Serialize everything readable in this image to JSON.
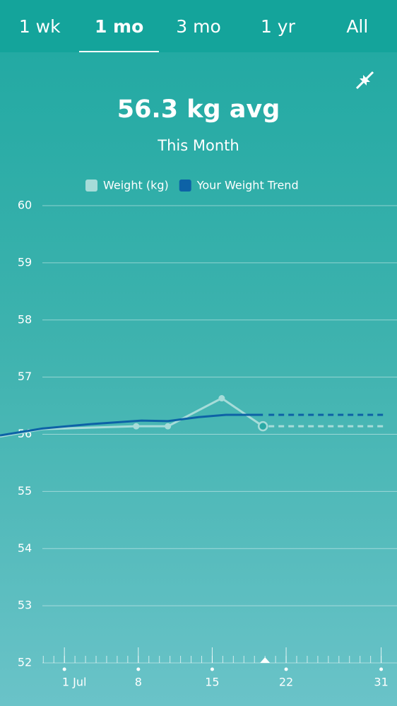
{
  "tabs": [
    "1 wk",
    "1 mo",
    "3 mo",
    "1 yr",
    "All"
  ],
  "summary": {
    "value": "56.3 kg avg",
    "period": "This Month"
  },
  "chart_data": {
    "type": "line",
    "series": [
      {
        "name": "Weight (kg)",
        "color": "#a6dcd9",
        "x": [
          -5.1,
          -1.1,
          7.8,
          10.8,
          15.9,
          19.8
        ],
        "values": [
          55.96,
          56.09,
          56.14,
          56.14,
          56.63,
          56.14
        ]
      },
      {
        "name": "Your Weight Trend",
        "color": "#0d62a6",
        "x": [
          -5.1,
          -1.1,
          3.6,
          8.3,
          10.8,
          13.7,
          16.3,
          19.8
        ],
        "values": [
          55.98,
          56.1,
          56.18,
          56.24,
          56.23,
          56.3,
          56.34,
          56.34
        ]
      }
    ],
    "xlim": [
      -5.1,
      32.5
    ],
    "xticks": [
      {
        "value": 1,
        "label": "1 Jul"
      },
      8,
      15,
      22,
      31
    ],
    "ylim": [
      52,
      60
    ],
    "yticks": [
      52,
      53,
      54,
      55,
      56,
      57,
      58,
      59,
      60
    ],
    "grid": true
  }
}
